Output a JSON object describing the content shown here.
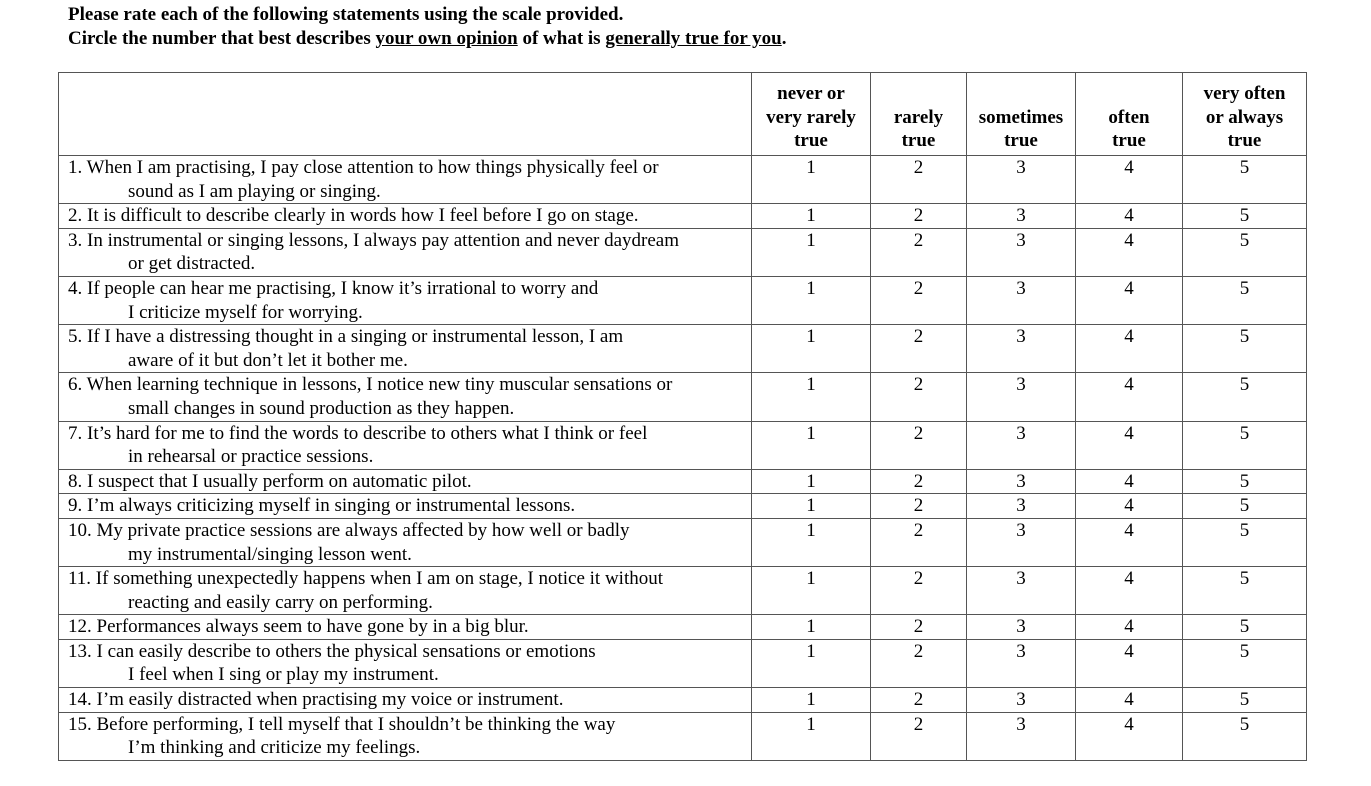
{
  "instructions": {
    "line1": "Please rate each of the following statements using the scale provided.",
    "line2": [
      "Circle the number that best describes ",
      "your own opinion",
      " of what is ",
      "generally true for you",
      "."
    ]
  },
  "table": {
    "columns": [
      [
        "never or",
        "very rarely",
        "true"
      ],
      [
        "rarely",
        "true"
      ],
      [
        "sometimes",
        "true"
      ],
      [
        "often",
        "true"
      ],
      [
        "very often",
        "or always",
        "true"
      ]
    ],
    "rows": [
      {
        "statement": [
          "1. When I am practising, I pay close attention to how things physically feel or",
          "sound as I am playing or singing."
        ],
        "ratings": [
          1,
          2,
          3,
          4,
          5
        ]
      },
      {
        "statement": [
          "2. It is difficult to describe clearly in words how I feel before I go on stage."
        ],
        "ratings": [
          1,
          2,
          3,
          4,
          5
        ]
      },
      {
        "statement": [
          "3. In instrumental or singing lessons, I always pay attention and never daydream",
          "or get distracted."
        ],
        "ratings": [
          1,
          2,
          3,
          4,
          5
        ]
      },
      {
        "statement": [
          "4. If people can hear me practising, I know it’s irrational to worry and",
          "I criticize myself for worrying."
        ],
        "ratings": [
          1,
          2,
          3,
          4,
          5
        ]
      },
      {
        "statement": [
          "5. If I have a distressing thought in a singing or instrumental lesson, I am",
          "aware of it but don’t let it bother me."
        ],
        "ratings": [
          1,
          2,
          3,
          4,
          5
        ]
      },
      {
        "statement": [
          "6. When learning technique in lessons, I notice new tiny muscular sensations or",
          "small changes in sound production as they happen."
        ],
        "ratings": [
          1,
          2,
          3,
          4,
          5
        ]
      },
      {
        "statement": [
          "7. It’s hard for me to find the words to describe to others what I think or feel",
          "in rehearsal or practice sessions."
        ],
        "ratings": [
          1,
          2,
          3,
          4,
          5
        ]
      },
      {
        "statement": [
          "8. I suspect that I usually perform on automatic pilot."
        ],
        "ratings": [
          1,
          2,
          3,
          4,
          5
        ]
      },
      {
        "statement": [
          "9. I’m always criticizing myself in singing or instrumental lessons."
        ],
        "ratings": [
          1,
          2,
          3,
          4,
          5
        ]
      },
      {
        "statement": [
          "10. My private practice sessions are always affected by how well or badly",
          "my instrumental/singing lesson went."
        ],
        "ratings": [
          1,
          2,
          3,
          4,
          5
        ]
      },
      {
        "statement": [
          "11. If something unexpectedly happens when I am on stage, I notice it without",
          "reacting and easily carry on performing."
        ],
        "ratings": [
          1,
          2,
          3,
          4,
          5
        ]
      },
      {
        "statement": [
          "12. Performances always seem to have gone by in a big blur."
        ],
        "ratings": [
          1,
          2,
          3,
          4,
          5
        ]
      },
      {
        "statement": [
          "13. I can easily describe to others the physical sensations or emotions",
          "I feel when I sing or play my instrument."
        ],
        "ratings": [
          1,
          2,
          3,
          4,
          5
        ]
      },
      {
        "statement": [
          "14. I’m easily distracted when practising my voice or instrument."
        ],
        "ratings": [
          1,
          2,
          3,
          4,
          5
        ]
      },
      {
        "statement": [
          "15. Before performing, I tell myself that I shouldn’t be thinking the way",
          "I’m thinking and criticize my feelings."
        ],
        "ratings": [
          1,
          2,
          3,
          4,
          5
        ]
      }
    ]
  }
}
